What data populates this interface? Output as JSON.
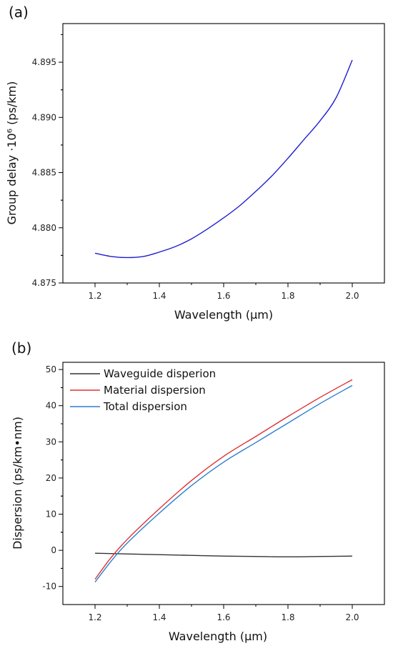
{
  "chart_data": [
    {
      "type": "line",
      "panel_label": "(a)",
      "title": "",
      "xlabel": "Wavelength (μm)",
      "ylabel": "Group delay ·10⁶ (ps/km)",
      "xlim": [
        1.1,
        2.1
      ],
      "ylim": [
        4.875,
        4.8985
      ],
      "xticks": [
        1.2,
        1.4,
        1.6,
        1.8,
        2.0
      ],
      "xtick_labels": [
        "1.2",
        "1.4",
        "1.6",
        "1.8",
        "2.0"
      ],
      "yticks": [
        4.875,
        4.88,
        4.885,
        4.89,
        4.895
      ],
      "ytick_labels": [
        "4.875",
        "4.880",
        "4.885",
        "4.890",
        "4.895"
      ],
      "grid": false,
      "series": [
        {
          "color": "#1f1fd0",
          "x": [
            1.2,
            1.25,
            1.3,
            1.35,
            1.4,
            1.45,
            1.5,
            1.55,
            1.6,
            1.65,
            1.7,
            1.75,
            1.8,
            1.85,
            1.9,
            1.95,
            2.0
          ],
          "y": [
            4.8777,
            4.8774,
            4.8773,
            4.8774,
            4.8778,
            4.8783,
            4.879,
            4.8799,
            4.8809,
            4.882,
            4.8833,
            4.8847,
            4.8863,
            4.888,
            4.8897,
            4.8918,
            4.8952
          ]
        }
      ]
    },
    {
      "type": "line",
      "panel_label": "(b)",
      "title": "",
      "xlabel": "Wavelength (μm)",
      "ylabel": "Dispersion (ps/km•nm)",
      "xlim": [
        1.1,
        2.1
      ],
      "ylim": [
        -15,
        52
      ],
      "xticks": [
        1.2,
        1.4,
        1.6,
        1.8,
        2.0
      ],
      "xtick_labels": [
        "1.2",
        "1.4",
        "1.6",
        "1.8",
        "2.0"
      ],
      "yticks": [
        -10,
        0,
        10,
        20,
        30,
        40,
        50
      ],
      "ytick_labels": [
        "-10",
        "0",
        "10",
        "20",
        "30",
        "40",
        "50"
      ],
      "grid": false,
      "legend_position": "top-left",
      "series": [
        {
          "name": "Waveguide disperion",
          "color": "#333333",
          "x": [
            1.2,
            1.3,
            1.4,
            1.5,
            1.6,
            1.7,
            1.8,
            1.9,
            2.0
          ],
          "y": [
            -0.8,
            -1.0,
            -1.2,
            -1.4,
            -1.6,
            -1.7,
            -1.8,
            -1.7,
            -1.6
          ]
        },
        {
          "name": "Material dispersion",
          "color": "#e03030",
          "x": [
            1.2,
            1.25,
            1.3,
            1.4,
            1.5,
            1.6,
            1.7,
            1.8,
            1.9,
            2.0
          ],
          "y": [
            -8.0,
            -2.0,
            3.0,
            11.5,
            19.3,
            26.0,
            31.5,
            37.0,
            42.3,
            47.2
          ]
        },
        {
          "name": "Total dispersion",
          "color": "#2a7fd0",
          "x": [
            1.2,
            1.25,
            1.3,
            1.4,
            1.5,
            1.6,
            1.7,
            1.8,
            1.9,
            2.0
          ],
          "y": [
            -8.8,
            -3.0,
            2.0,
            10.3,
            17.9,
            24.4,
            29.8,
            35.2,
            40.6,
            45.6
          ]
        }
      ]
    }
  ]
}
